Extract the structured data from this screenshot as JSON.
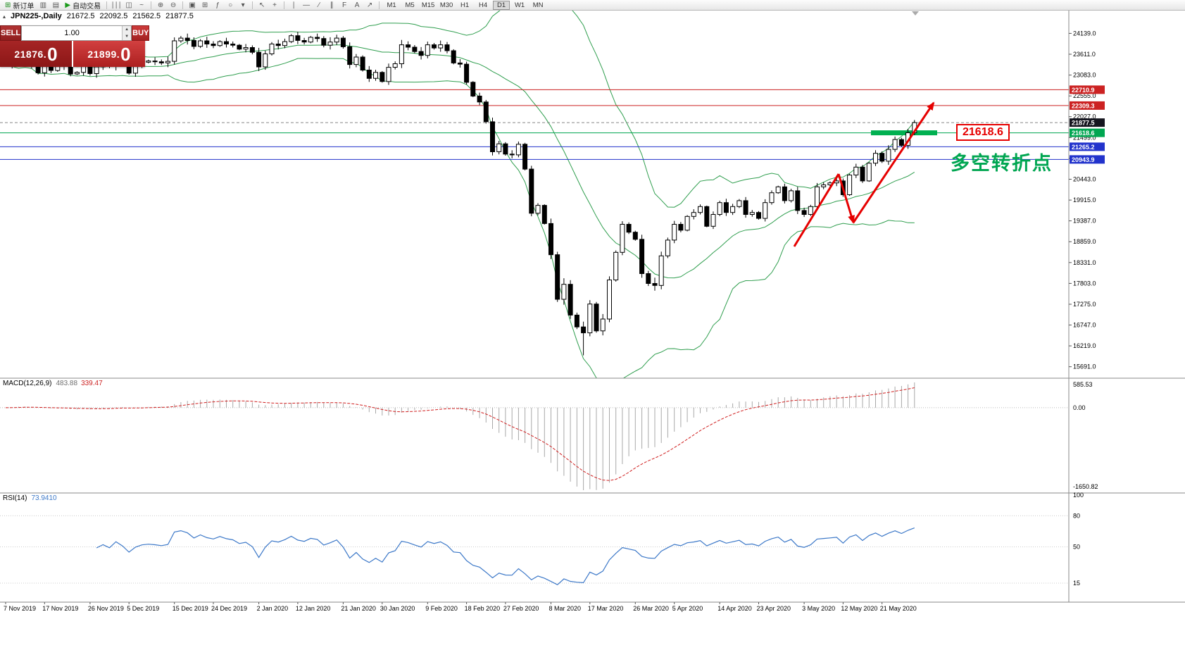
{
  "toolbar": {
    "items": [
      {
        "t": "btn",
        "name": "new-order-button",
        "icon": "⊞",
        "label": "新订单",
        "color": "#1a8a1a"
      },
      {
        "t": "ico",
        "name": "chart-window-icon",
        "icon": "▥"
      },
      {
        "t": "ico",
        "name": "profiles-icon",
        "icon": "▤"
      },
      {
        "t": "btn",
        "name": "autotrading-button",
        "icon": "▶",
        "label": "自动交易",
        "color": "#1a9a1a"
      },
      {
        "t": "sep"
      },
      {
        "t": "ico",
        "name": "bar-chart-icon",
        "icon": "∣∣∣"
      },
      {
        "t": "ico",
        "name": "candlestick-chart-icon",
        "icon": "◫"
      },
      {
        "t": "ico",
        "name": "line-chart-icon",
        "icon": "~"
      },
      {
        "t": "sep"
      },
      {
        "t": "ico",
        "name": "zoom-in-icon",
        "icon": "⊕"
      },
      {
        "t": "ico",
        "name": "zoom-out-icon",
        "icon": "⊖"
      },
      {
        "t": "sep"
      },
      {
        "t": "ico",
        "name": "tile-windows-icon",
        "icon": "▣"
      },
      {
        "t": "ico",
        "name": "new-chart-icon",
        "icon": "⊞"
      },
      {
        "t": "ico",
        "name": "indicators-icon",
        "icon": "ƒ"
      },
      {
        "t": "ico",
        "name": "periods-icon",
        "icon": "○"
      },
      {
        "t": "ico",
        "name": "templates-dropdown-icon",
        "icon": "▾"
      },
      {
        "t": "sep"
      },
      {
        "t": "ico",
        "name": "cursor-icon",
        "icon": "↖"
      },
      {
        "t": "ico",
        "name": "crosshair-icon",
        "icon": "+"
      },
      {
        "t": "sep"
      },
      {
        "t": "ico",
        "name": "vertical-line-icon",
        "icon": "∣"
      },
      {
        "t": "ico",
        "name": "horizontal-line-icon",
        "icon": "―"
      },
      {
        "t": "ico",
        "name": "trendline-icon",
        "icon": "∕"
      },
      {
        "t": "ico",
        "name": "channel-icon",
        "icon": "∥"
      },
      {
        "t": "ico",
        "name": "fibonacci-icon",
        "icon": "F"
      },
      {
        "t": "ico",
        "name": "text-label-icon",
        "icon": "A"
      },
      {
        "t": "ico",
        "name": "arrows-tool-icon",
        "icon": "↗"
      },
      {
        "t": "sep"
      }
    ],
    "timeframes": [
      "M1",
      "M5",
      "M15",
      "M30",
      "H1",
      "H4",
      "D1",
      "W1",
      "MN"
    ],
    "active_timeframe": "D1"
  },
  "chart_header": {
    "collapse_icon": "▴",
    "symbol": "JPN225-,Daily",
    "open": "21672.5",
    "high": "22092.5",
    "low": "21562.5",
    "close": "21877.5"
  },
  "trade_panel": {
    "sell_label": "SELL",
    "buy_label": "BUY",
    "volume": "1.00",
    "sell_price": "21876.0",
    "buy_price": "21899.0"
  },
  "macd_panel": {
    "label": "MACD(12,26,9)",
    "main_value": "483.88",
    "signal_value": "339.47"
  },
  "rsi_panel": {
    "label": "RSI(14)",
    "value": "73.9410"
  },
  "chart_data": {
    "type": "candlestick",
    "title": "JPN225-,Daily",
    "ohlc_current": {
      "open": 21672.5,
      "high": 22092.5,
      "low": 21562.5,
      "close": 21877.5
    },
    "y_range": [
      15400,
      24700
    ],
    "y_ticks": [
      "24139.0",
      "23611.0",
      "23083.0",
      "22555.0",
      "22027.0",
      "21499.0",
      "20971.0",
      "20443.0",
      "19915.0",
      "19387.0",
      "18859.0",
      "18331.0",
      "17803.0",
      "17275.0",
      "16747.0",
      "16219.0",
      "15691.0"
    ],
    "x_ticks": [
      "7 Nov 2019",
      "17 Nov 2019",
      "26 Nov 2019",
      "5 Dec 2019",
      "15 Dec 2019",
      "24 Dec 2019",
      "2 Jan 2020",
      "12 Jan 2020",
      "21 Jan 2020",
      "30 Jan 2020",
      "9 Feb 2020",
      "18 Feb 2020",
      "27 Feb 2020",
      "8 Mar 2020",
      "17 Mar 2020",
      "26 Mar 2020",
      "5 Apr 2020",
      "14 Apr 2020",
      "23 Apr 2020",
      "3 May 2020",
      "12 May 2020",
      "21 May 2020"
    ],
    "closes": [
      23330,
      23390,
      23520,
      23420,
      23320,
      23140,
      23300,
      23200,
      23300,
      23370,
      23110,
      23150,
      23380,
      23120,
      23290,
      23410,
      23300,
      23530,
      23380,
      23130,
      23320,
      23410,
      23440,
      23420,
      23390,
      23430,
      23950,
      24020,
      23960,
      23810,
      23950,
      23870,
      23830,
      23930,
      23870,
      23840,
      23740,
      23780,
      23660,
      23290,
      23620,
      23870,
      23830,
      23930,
      24080,
      23960,
      23920,
      24040,
      24010,
      23840,
      23920,
      24020,
      23800,
      23350,
      23540,
      23210,
      23000,
      23150,
      22920,
      23280,
      23370,
      23850,
      23790,
      23680,
      23580,
      23850,
      23770,
      23850,
      23700,
      23390,
      23360,
      22900,
      22550,
      22400,
      21900,
      21140,
      21340,
      21080,
      21060,
      21330,
      20700,
      19580,
      19780,
      19320,
      18530,
      17400,
      17780,
      17000,
      16700,
      16550,
      17280,
      16600,
      16900,
      17890,
      18590,
      19300,
      19100,
      18920,
      18050,
      17800,
      17750,
      18500,
      18900,
      19300,
      19150,
      19500,
      19600,
      19750,
      19250,
      19550,
      19850,
      19600,
      19750,
      19900,
      19550,
      19600,
      19450,
      19850,
      20100,
      20250,
      19900,
      20150,
      19650,
      19550,
      19750,
      20250,
      20300,
      20350,
      20400,
      20050,
      20550,
      20750,
      20400,
      20850,
      21100,
      20900,
      21200,
      21450,
      21300,
      21620,
      21877.5
    ],
    "levels": [
      {
        "price": 22710.9,
        "label": "22710.9",
        "color": "#cc2222",
        "style": "solid",
        "label_bg": "#cc2222"
      },
      {
        "price": 22309.3,
        "label": "22309.3",
        "color": "#cc2222",
        "style": "solid",
        "label_bg": "#cc2222"
      },
      {
        "price": 21877.5,
        "label": "21877.5",
        "color": "#888888",
        "style": "dash",
        "label_bg": "#15151f",
        "role": "current-price"
      },
      {
        "price": 21618.6,
        "label": "21618.6",
        "color": "#00a651",
        "style": "solid",
        "label_bg": "#00a651",
        "highlight_segment": true
      },
      {
        "price": 21265.2,
        "label": "21265.2",
        "color": "#2233cc",
        "style": "solid",
        "label_bg": "#2233cc"
      },
      {
        "price": 20943.9,
        "label": "20943.9",
        "color": "#2233cc",
        "style": "solid",
        "label_bg": "#2233cc"
      }
    ],
    "bollinger": {
      "period": 20,
      "deviation": 2,
      "color": "#2f9e4e"
    },
    "macd": {
      "fast": 12,
      "slow": 26,
      "signal": 9,
      "current_main": 483.88,
      "current_signal": 339.47,
      "y_ticks": [
        "585.53",
        "0.00",
        "-1650.82"
      ],
      "histogram_color": "#a8a8a8",
      "signal_color": "#d02020"
    },
    "rsi": {
      "period": 14,
      "current": 73.941,
      "y_ticks": [
        100,
        80,
        50,
        15
      ],
      "line_color": "#3c78c8"
    },
    "annotations": {
      "level_callout": "21618.6",
      "turning_point": "多空转折点",
      "arrow_color": "#e60000",
      "highlight_bar_color": "#00b050"
    }
  }
}
